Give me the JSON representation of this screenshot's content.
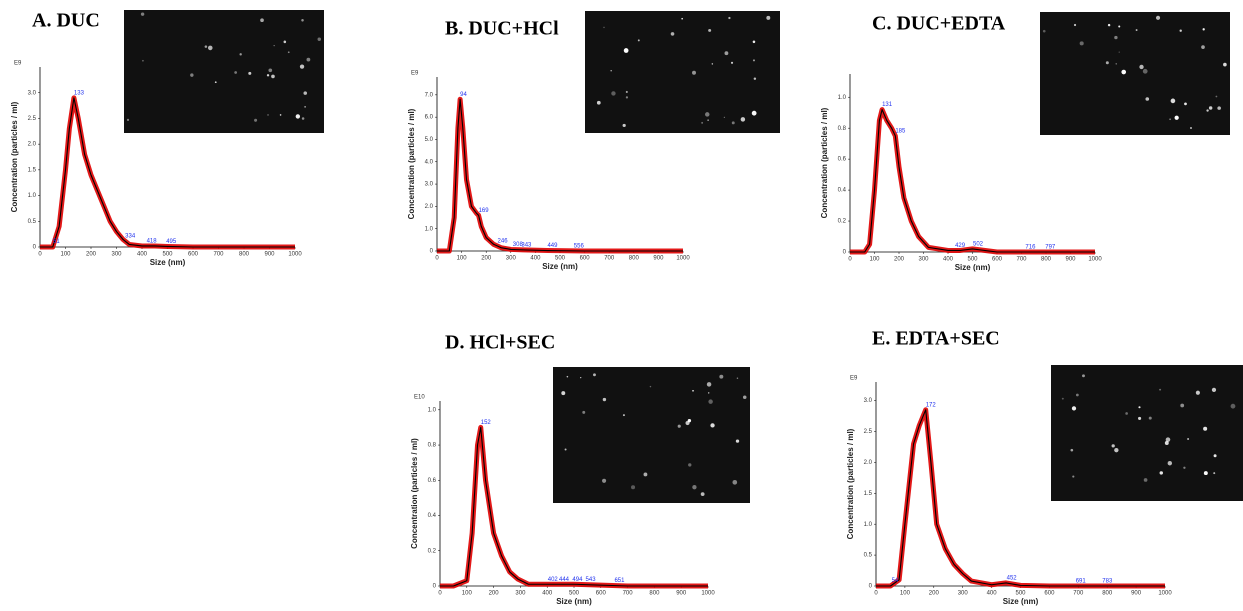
{
  "chart_data": [
    {
      "type": "line",
      "title": "A. DUC",
      "exponent": "E9",
      "xlabel": "Size (nm)",
      "ylabel": "Concentration (particles / ml)",
      "color": "#000000",
      "band_color": "#e00000",
      "x": [
        0,
        50,
        75,
        100,
        115,
        133,
        150,
        175,
        200,
        225,
        250,
        275,
        300,
        325,
        350,
        400,
        450,
        500,
        600,
        1000
      ],
      "values": [
        0,
        0,
        0.4,
        1.5,
        2.3,
        2.9,
        2.5,
        1.8,
        1.4,
        1.1,
        0.8,
        0.5,
        0.3,
        0.15,
        0.05,
        0.02,
        0.02,
        0.01,
        0,
        0
      ],
      "peaks": [
        51,
        133,
        334,
        418,
        495
      ],
      "xlim": [
        0,
        1000
      ],
      "xticks": [
        0,
        100,
        200,
        300,
        400,
        500,
        600,
        700,
        800,
        900,
        1000
      ],
      "ylim": [
        0,
        3.5
      ],
      "yticks": [
        0,
        0.5,
        {
          "value": 1,
          "label": "1.0"
        },
        1.5,
        {
          "value": 2,
          "label": "2.0"
        },
        2.5,
        {
          "value": 3,
          "label": "3.0"
        }
      ]
    },
    {
      "type": "line",
      "title": "B. DUC+HCl",
      "exponent": "E9",
      "xlabel": "Size (nm)",
      "ylabel": "Concentration (particles / ml)",
      "color": "#000000",
      "band_color": "#e00000",
      "x": [
        0,
        50,
        70,
        85,
        94,
        105,
        120,
        140,
        160,
        169,
        180,
        200,
        230,
        260,
        300,
        350,
        450,
        600,
        1000
      ],
      "values": [
        0,
        0,
        1.5,
        5.5,
        6.8,
        5.5,
        3.2,
        2.0,
        1.7,
        1.6,
        1.1,
        0.6,
        0.3,
        0.15,
        0.07,
        0.05,
        0.02,
        0,
        0
      ],
      "peaks": [
        94,
        169,
        246,
        308,
        343,
        449,
        556
      ],
      "xlim": [
        0,
        1000
      ],
      "xticks": [
        0,
        100,
        200,
        300,
        400,
        500,
        600,
        700,
        800,
        900,
        1000
      ],
      "ylim": [
        0,
        7.8
      ],
      "yticks": [
        0,
        {
          "value": 1,
          "label": "1.0"
        },
        {
          "value": 2,
          "label": "2.0"
        },
        {
          "value": 3,
          "label": "3.0"
        },
        {
          "value": 4,
          "label": "4.0"
        },
        {
          "value": 5,
          "label": "5.0"
        },
        {
          "value": 6,
          "label": "6.0"
        },
        {
          "value": 7,
          "label": "7.0"
        }
      ]
    },
    {
      "type": "line",
      "title": "C. DUC+EDTA",
      "xlabel": "Size (nm)",
      "ylabel": "Concentration (particles / ml)",
      "color": "#000000",
      "band_color": "#e00000",
      "x": [
        0,
        60,
        80,
        100,
        120,
        131,
        150,
        170,
        185,
        200,
        220,
        250,
        280,
        320,
        400,
        450,
        500,
        600,
        800,
        1000
      ],
      "values": [
        0,
        0,
        0.05,
        0.4,
        0.85,
        0.92,
        0.85,
        0.8,
        0.75,
        0.55,
        0.35,
        0.2,
        0.1,
        0.03,
        0.01,
        0.01,
        0.02,
        0,
        0,
        0
      ],
      "peaks": [
        131,
        185,
        429,
        502,
        716,
        797
      ],
      "xlim": [
        0,
        1000
      ],
      "xticks": [
        0,
        100,
        200,
        300,
        400,
        500,
        600,
        700,
        800,
        900,
        1000
      ],
      "ylim": [
        0,
        1.15
      ],
      "yticks": [
        0,
        0.2,
        0.4,
        0.6,
        0.8,
        {
          "value": 1,
          "label": "1.0"
        }
      ]
    },
    {
      "type": "line",
      "title": "D. HCl+SEC",
      "exponent": "E10",
      "xlabel": "Size (nm)",
      "ylabel": "Concentration (particles / ml)",
      "color": "#000000",
      "band_color": "#e00000",
      "x": [
        0,
        50,
        100,
        120,
        140,
        152,
        170,
        200,
        230,
        260,
        290,
        330,
        400,
        500,
        700,
        1000
      ],
      "values": [
        0,
        0,
        0.03,
        0.3,
        0.8,
        0.9,
        0.6,
        0.3,
        0.17,
        0.08,
        0.04,
        0.01,
        0.01,
        0.01,
        0,
        0
      ],
      "peaks": [
        152,
        402,
        444,
        494,
        543,
        651
      ],
      "xlim": [
        0,
        1000
      ],
      "xticks": [
        0,
        100,
        200,
        300,
        400,
        500,
        600,
        700,
        800,
        900,
        1000
      ],
      "ylim": [
        0,
        1.05
      ],
      "yticks": [
        0,
        0.2,
        0.4,
        0.6,
        0.8,
        {
          "value": 1,
          "label": "1.0"
        }
      ]
    },
    {
      "type": "line",
      "title": "E. EDTA+SEC",
      "exponent": "E9",
      "xlabel": "Size (nm)",
      "ylabel": "Concentration (particles / ml)",
      "color": "#000000",
      "band_color": "#e00000",
      "x": [
        0,
        50,
        80,
        100,
        130,
        150,
        172,
        190,
        210,
        240,
        270,
        300,
        330,
        400,
        450,
        500,
        600,
        1000
      ],
      "values": [
        0,
        0,
        0.1,
        1.0,
        2.3,
        2.6,
        2.85,
        2.0,
        1.0,
        0.6,
        0.35,
        0.2,
        0.08,
        0.02,
        0.05,
        0.01,
        0,
        0
      ],
      "peaks": [
        54,
        172,
        452,
        691,
        783
      ],
      "xlim": [
        0,
        1000
      ],
      "xticks": [
        0,
        100,
        200,
        300,
        400,
        500,
        600,
        700,
        800,
        900,
        1000
      ],
      "ylim": [
        0,
        3.3
      ],
      "yticks": [
        0,
        0.5,
        {
          "value": 1,
          "label": "1.0"
        },
        1.5,
        {
          "value": 2,
          "label": "2.0"
        },
        2.5,
        {
          "value": 3,
          "label": "3.0"
        }
      ]
    }
  ]
}
